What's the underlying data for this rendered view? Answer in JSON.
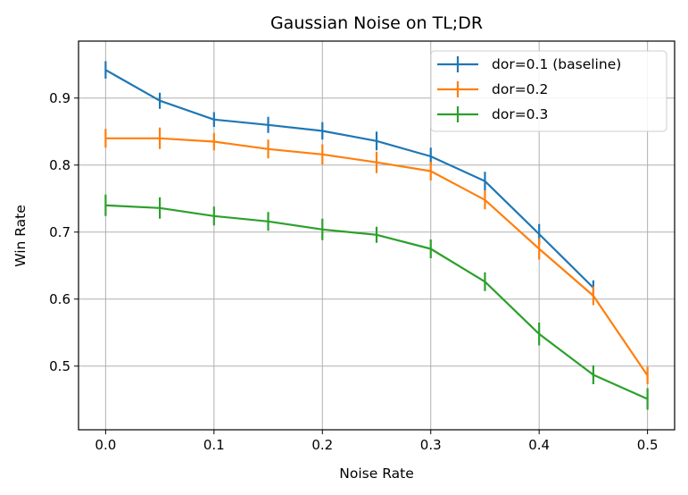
{
  "chart_data": {
    "type": "line",
    "title": "Gaussian Noise on TL;DR",
    "xlabel": "Noise Rate",
    "ylabel": "Win Rate",
    "xlim": [
      -0.025,
      0.525
    ],
    "ylim": [
      0.405,
      0.985
    ],
    "x_ticks": [
      0.0,
      0.1,
      0.2,
      0.3,
      0.4,
      0.5
    ],
    "x_tick_labels": [
      "0.0",
      "0.1",
      "0.2",
      "0.3",
      "0.4",
      "0.5"
    ],
    "y_ticks": [
      0.5,
      0.6,
      0.7,
      0.8,
      0.9
    ],
    "y_tick_labels": [
      "0.5",
      "0.6",
      "0.7",
      "0.8",
      "0.9"
    ],
    "grid": true,
    "legend_position": "top-right",
    "series": [
      {
        "name": "dor=0.1 (baseline)",
        "color": "#1f77b4",
        "x": [
          0.0,
          0.05,
          0.1,
          0.15,
          0.2,
          0.25,
          0.3,
          0.35,
          0.4,
          0.45
        ],
        "y": [
          0.942,
          0.896,
          0.868,
          0.86,
          0.851,
          0.836,
          0.813,
          0.776,
          0.697,
          0.617
        ],
        "err": [
          0.013,
          0.012,
          0.011,
          0.012,
          0.013,
          0.014,
          0.013,
          0.014,
          0.015,
          0.011
        ]
      },
      {
        "name": "dor=0.2",
        "color": "#ff7f0e",
        "x": [
          0.0,
          0.05,
          0.1,
          0.15,
          0.2,
          0.25,
          0.3,
          0.35,
          0.4,
          0.45,
          0.5
        ],
        "y": [
          0.84,
          0.84,
          0.835,
          0.824,
          0.816,
          0.804,
          0.791,
          0.748,
          0.675,
          0.605,
          0.486
        ],
        "err": [
          0.014,
          0.016,
          0.013,
          0.014,
          0.015,
          0.016,
          0.014,
          0.014,
          0.016,
          0.014,
          0.013
        ]
      },
      {
        "name": "dor=0.3",
        "color": "#2ca02c",
        "x": [
          0.0,
          0.05,
          0.1,
          0.15,
          0.2,
          0.25,
          0.3,
          0.35,
          0.4,
          0.45,
          0.5
        ],
        "y": [
          0.74,
          0.736,
          0.724,
          0.716,
          0.704,
          0.696,
          0.675,
          0.626,
          0.548,
          0.487,
          0.451
        ],
        "err": [
          0.016,
          0.016,
          0.014,
          0.014,
          0.016,
          0.012,
          0.014,
          0.014,
          0.017,
          0.014,
          0.016
        ]
      }
    ]
  }
}
